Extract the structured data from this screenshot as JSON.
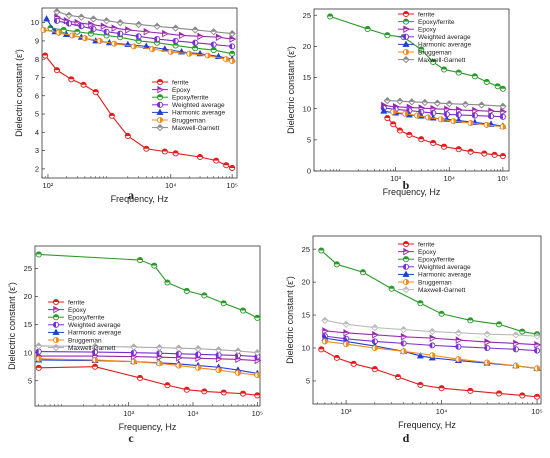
{
  "figure": {
    "panel_letters": [
      "a",
      "b",
      "c",
      "d"
    ]
  },
  "chart_data": [
    {
      "panel": "a",
      "type": "line",
      "xlabel": "Frequency, Hz",
      "ylabel": "Dielectric constant (ε')",
      "xscale": "log",
      "xlim": [
        80,
        120000
      ],
      "ylim": [
        1.5,
        10.8
      ],
      "x_ticks": [
        {
          "value": 100,
          "label": "10²"
        },
        {
          "value": 10000,
          "label": "10⁴"
        },
        {
          "value": 100000,
          "label": "10⁵"
        }
      ],
      "y_ticks": [
        {
          "value": 2,
          "label": "2"
        },
        {
          "value": 3,
          "label": "3"
        },
        {
          "value": 4,
          "label": "4"
        },
        {
          "value": 5,
          "label": "5"
        },
        {
          "value": 6,
          "label": "6"
        },
        {
          "value": 7,
          "label": "7"
        },
        {
          "value": 8,
          "label": "8"
        },
        {
          "value": 9,
          "label": "9"
        },
        {
          "value": 10,
          "label": "10"
        }
      ],
      "legend_position": "center-right",
      "series": [
        {
          "name": "ferrite",
          "color": "#e41a1c",
          "marker": "circle-half",
          "x": [
            90,
            140,
            240,
            380,
            600,
            1100,
            2000,
            4000,
            8000,
            12000,
            30000,
            55000,
            80000,
            100000
          ],
          "y": [
            8.2,
            7.4,
            6.9,
            6.6,
            6.2,
            4.9,
            3.8,
            3.1,
            2.95,
            2.85,
            2.65,
            2.45,
            2.2,
            2.05
          ]
        },
        {
          "name": "Epoxy",
          "color": "#9b27b0",
          "marker": "triangle-right",
          "x": [
            140,
            200,
            300,
            500,
            800,
            1200,
            2000,
            4000,
            8000,
            15000,
            30000,
            60000,
            100000
          ],
          "y": [
            10.3,
            10.1,
            10.0,
            9.9,
            9.8,
            9.7,
            9.6,
            9.5,
            9.4,
            9.3,
            9.25,
            9.2,
            9.1
          ]
        },
        {
          "name": "Epoxy/ferrite",
          "color": "#2a9a2a",
          "marker": "circle-half",
          "x": [
            110,
            180,
            300,
            500,
            900,
            1500,
            3000,
            6000,
            12000,
            25000,
            50000,
            100000
          ],
          "y": [
            9.7,
            9.6,
            9.5,
            9.4,
            9.3,
            9.2,
            9.0,
            8.9,
            8.75,
            8.6,
            8.5,
            8.3
          ]
        },
        {
          "name": "Weighted average",
          "color": "#7b2fd0",
          "marker": "circle-left",
          "x": [
            140,
            220,
            350,
            550,
            900,
            1500,
            3000,
            6000,
            12000,
            25000,
            50000,
            100000
          ],
          "y": [
            10.1,
            9.95,
            9.8,
            9.65,
            9.5,
            9.4,
            9.25,
            9.1,
            9.0,
            8.9,
            8.8,
            8.7
          ]
        },
        {
          "name": "Harmonic average",
          "color": "#1f3fd6",
          "marker": "triangle-up",
          "x": [
            95,
            130,
            200,
            350,
            600,
            1000,
            2000,
            4000,
            8000,
            15000,
            30000,
            60000,
            100000
          ],
          "y": [
            10.2,
            9.5,
            9.35,
            9.2,
            9.0,
            8.9,
            8.8,
            8.7,
            8.55,
            8.4,
            8.3,
            8.15,
            8.0
          ]
        },
        {
          "name": "Bruggeman",
          "color": "#f08a18",
          "marker": "circle-right",
          "x": [
            85,
            150,
            250,
            400,
            700,
            1200,
            2500,
            5000,
            10000,
            20000,
            40000,
            80000,
            100000
          ],
          "y": [
            9.6,
            9.45,
            9.3,
            9.15,
            9.0,
            8.85,
            8.7,
            8.55,
            8.4,
            8.3,
            8.2,
            8.0,
            7.9
          ]
        },
        {
          "name": "Maxwell-Garnett",
          "color": "#888888",
          "marker": "diamond",
          "x": [
            140,
            220,
            350,
            550,
            900,
            1500,
            3000,
            6000,
            12000,
            25000,
            50000,
            100000
          ],
          "y": [
            10.6,
            10.4,
            10.3,
            10.2,
            10.1,
            10.0,
            9.9,
            9.8,
            9.7,
            9.6,
            9.5,
            9.4
          ]
        }
      ]
    },
    {
      "panel": "b",
      "type": "line",
      "xlabel": "Frequency, Hz",
      "ylabel": "Dielectric constant (ε')",
      "xscale": "log",
      "xlim": [
        30,
        130000
      ],
      "ylim": [
        0,
        26
      ],
      "x_ticks": [
        {
          "value": 1000,
          "label": "10³"
        },
        {
          "value": 10000,
          "label": "10⁴"
        },
        {
          "value": 100000,
          "label": "10⁵"
        }
      ],
      "y_ticks": [
        {
          "value": 0,
          "label": "0"
        },
        {
          "value": 5,
          "label": "5"
        },
        {
          "value": 10,
          "label": "10"
        },
        {
          "value": 15,
          "label": "15"
        },
        {
          "value": 20,
          "label": "20"
        },
        {
          "value": 25,
          "label": "25"
        }
      ],
      "legend_position": "top-right",
      "series": [
        {
          "name": "ferrite",
          "color": "#e41a1c",
          "marker": "circle-half",
          "x": [
            700,
            900,
            1200,
            1800,
            3000,
            5000,
            8000,
            15000,
            25000,
            45000,
            70000,
            100000
          ],
          "y": [
            8.5,
            7.5,
            6.5,
            5.8,
            5.1,
            4.5,
            3.9,
            3.5,
            3.1,
            2.8,
            2.6,
            2.4
          ]
        },
        {
          "name": "Epoxy/ferrite",
          "color": "#2a9a2a",
          "marker": "circle-half",
          "x": [
            60,
            300,
            700,
            1400,
            3000,
            5000,
            8000,
            15000,
            30000,
            50000,
            80000,
            100000
          ],
          "y": [
            24.8,
            22.8,
            21.8,
            21.5,
            19.5,
            17.5,
            16.3,
            15.8,
            15.2,
            14.3,
            13.6,
            13.2
          ]
        },
        {
          "name": "Epoxy",
          "color": "#9b27b0",
          "marker": "triangle-right",
          "x": [
            600,
            1000,
            1800,
            3000,
            5000,
            9000,
            15000,
            30000,
            60000,
            100000
          ],
          "y": [
            10.5,
            10.3,
            10.2,
            10.1,
            10.0,
            9.9,
            9.8,
            9.7,
            9.6,
            9.5
          ]
        },
        {
          "name": "Weighted average",
          "color": "#7b2fd0",
          "marker": "circle-left",
          "x": [
            600,
            1000,
            1800,
            3000,
            5000,
            9000,
            15000,
            30000,
            60000,
            100000
          ],
          "y": [
            10.1,
            9.9,
            9.7,
            9.5,
            9.3,
            9.1,
            9.0,
            8.9,
            8.8,
            8.7
          ]
        },
        {
          "name": "Harmonic average",
          "color": "#1f3fd6",
          "marker": "triangle-up",
          "x": [
            600,
            1000,
            1800,
            3000,
            5000,
            9000,
            15000,
            30000,
            60000,
            100000
          ],
          "y": [
            9.6,
            9.3,
            9.0,
            8.8,
            8.5,
            8.3,
            8.1,
            7.8,
            7.5,
            7.2
          ]
        },
        {
          "name": "Bruggeman",
          "color": "#f08a18",
          "marker": "circle-right",
          "x": [
            900,
            1500,
            2500,
            4000,
            7000,
            12000,
            25000,
            50000,
            100000
          ],
          "y": [
            9.5,
            9.2,
            8.9,
            8.6,
            8.3,
            8.0,
            7.7,
            7.4,
            7.1
          ]
        },
        {
          "name": "Maxwell-Garnett",
          "color": "#888888",
          "marker": "diamond",
          "x": [
            700,
            1200,
            2000,
            3500,
            6000,
            10000,
            20000,
            40000,
            100000
          ],
          "y": [
            11.3,
            11.2,
            11.1,
            11.0,
            10.9,
            10.8,
            10.7,
            10.6,
            10.4
          ]
        }
      ]
    },
    {
      "panel": "c",
      "type": "line",
      "xlabel": "Frequency, Hz",
      "ylabel": "Dielectric constant (ε')",
      "xscale": "log",
      "xlim": [
        35,
        110000
      ],
      "ylim": [
        0.5,
        29
      ],
      "x_ticks": [
        {
          "value": 1000,
          "label": "10³"
        },
        {
          "value": 10000,
          "label": "10⁴"
        },
        {
          "value": 100000,
          "label": "10⁵"
        }
      ],
      "y_ticks": [
        {
          "value": 5,
          "label": "5"
        },
        {
          "value": 10,
          "label": "10"
        },
        {
          "value": 15,
          "label": "15"
        },
        {
          "value": 20,
          "label": "20"
        },
        {
          "value": 25,
          "label": "25"
        }
      ],
      "legend_position": "center-left",
      "series": [
        {
          "name": "ferrite",
          "color": "#e41a1c",
          "marker": "circle-half",
          "x": [
            40,
            300,
            1500,
            4000,
            8000,
            15000,
            30000,
            60000,
            100000
          ],
          "y": [
            7.3,
            7.5,
            5.5,
            4.2,
            3.4,
            3.1,
            2.9,
            2.7,
            2.4
          ]
        },
        {
          "name": "Epoxy",
          "color": "#9b27b0",
          "marker": "triangle-right",
          "x": [
            40,
            300,
            1200,
            3000,
            6000,
            12000,
            25000,
            50000,
            100000
          ],
          "y": [
            9.4,
            9.4,
            9.3,
            9.2,
            9.1,
            9.0,
            8.9,
            8.8,
            8.6
          ]
        },
        {
          "name": "Epoxy/ferrite",
          "color": "#2a9a2a",
          "marker": "circle-half",
          "x": [
            40,
            1500,
            2500,
            4000,
            8000,
            15000,
            30000,
            60000,
            100000
          ],
          "y": [
            27.5,
            26.5,
            25.5,
            22.5,
            21.0,
            20.2,
            18.8,
            17.5,
            16.2
          ]
        },
        {
          "name": "Weighted average",
          "color": "#7b2fd0",
          "marker": "circle-left",
          "x": [
            40,
            300,
            1200,
            3000,
            6000,
            12000,
            25000,
            50000,
            100000
          ],
          "y": [
            10.2,
            10.1,
            10.0,
            9.9,
            9.8,
            9.7,
            9.6,
            9.5,
            9.3
          ]
        },
        {
          "name": "Harmonic average",
          "color": "#1f3fd6",
          "marker": "triangle-up",
          "x": [
            40,
            300,
            1200,
            3000,
            6000,
            12000,
            25000,
            50000,
            100000
          ],
          "y": [
            8.7,
            8.6,
            8.4,
            8.2,
            8.0,
            7.7,
            7.4,
            6.9,
            6.3
          ]
        },
        {
          "name": "Bruggeman",
          "color": "#f08a18",
          "marker": "circle-right",
          "x": [
            40,
            300,
            1200,
            3000,
            6000,
            12000,
            25000,
            50000,
            100000
          ],
          "y": [
            8.9,
            8.7,
            8.4,
            8.1,
            7.7,
            7.3,
            6.9,
            6.4,
            6.0
          ]
        },
        {
          "name": "Maxwell-Garnett",
          "color": "#aaaaaa",
          "marker": "diamond",
          "x": [
            40,
            300,
            1200,
            3000,
            6000,
            12000,
            25000,
            50000,
            100000
          ],
          "y": [
            11.2,
            11.1,
            11.0,
            10.9,
            10.8,
            10.7,
            10.5,
            10.3,
            10.0
          ]
        }
      ]
    },
    {
      "panel": "d",
      "type": "line",
      "xlabel": "Frequency, Hz",
      "ylabel": "Dielectric constant (ε')",
      "xscale": "log",
      "xlim": [
        450,
        110000
      ],
      "ylim": [
        1.5,
        27
      ],
      "x_ticks": [
        {
          "value": 1000,
          "label": "10³"
        },
        {
          "value": 10000,
          "label": "10⁴"
        },
        {
          "value": 100000,
          "label": "10⁵"
        }
      ],
      "y_ticks": [
        {
          "value": 5,
          "label": "5"
        },
        {
          "value": 10,
          "label": "10"
        },
        {
          "value": 15,
          "label": "15"
        },
        {
          "value": 20,
          "label": "20"
        },
        {
          "value": 25,
          "label": "25"
        }
      ],
      "legend_position": "top-right",
      "series": [
        {
          "name": "ferrite",
          "color": "#e41a1c",
          "marker": "circle-half",
          "x": [
            550,
            800,
            1200,
            2000,
            3500,
            6000,
            10000,
            20000,
            40000,
            70000,
            100000
          ],
          "y": [
            9.8,
            8.5,
            7.6,
            6.8,
            5.6,
            4.4,
            3.9,
            3.5,
            3.1,
            2.8,
            2.6
          ]
        },
        {
          "name": "Epoxy",
          "color": "#9b27b0",
          "marker": "triangle-right",
          "x": [
            600,
            1000,
            2000,
            4000,
            8000,
            15000,
            30000,
            60000,
            100000
          ],
          "y": [
            12.6,
            12.3,
            12.0,
            11.7,
            11.5,
            11.2,
            10.9,
            10.7,
            10.5
          ]
        },
        {
          "name": "Epoxy/ferrite",
          "color": "#2a9a2a",
          "marker": "circle-half",
          "x": [
            550,
            800,
            1500,
            3000,
            6000,
            10000,
            20000,
            40000,
            70000,
            100000
          ],
          "y": [
            24.8,
            22.7,
            21.5,
            19.0,
            16.8,
            15.2,
            14.2,
            13.6,
            12.5,
            12.1
          ]
        },
        {
          "name": "Weighted average",
          "color": "#7b2fd0",
          "marker": "circle-left",
          "x": [
            600,
            1000,
            2000,
            4000,
            8000,
            15000,
            30000,
            60000,
            100000
          ],
          "y": [
            11.8,
            11.4,
            11.0,
            10.7,
            10.4,
            10.2,
            10.0,
            9.8,
            9.6
          ]
        },
        {
          "name": "Harmonic average",
          "color": "#1f3fd6",
          "marker": "triangle-up",
          "x": [
            600,
            1000,
            2000,
            4000,
            6000,
            8000,
            15000,
            30000,
            60000,
            100000
          ],
          "y": [
            11.5,
            11.0,
            10.3,
            9.5,
            8.8,
            8.5,
            8.1,
            7.7,
            7.3,
            6.9
          ]
        },
        {
          "name": "Bruggeman",
          "color": "#f08a18",
          "marker": "circle-right",
          "x": [
            600,
            1000,
            2000,
            4000,
            8000,
            15000,
            30000,
            60000,
            100000
          ],
          "y": [
            11.0,
            10.6,
            10.0,
            9.5,
            8.9,
            8.3,
            7.8,
            7.3,
            6.9
          ]
        },
        {
          "name": "Maxwell-Garnett",
          "color": "#bbbbbb",
          "marker": "diamond",
          "x": [
            600,
            1000,
            2000,
            4000,
            8000,
            15000,
            30000,
            60000,
            100000
          ],
          "y": [
            14.2,
            13.6,
            13.1,
            12.8,
            12.5,
            12.3,
            12.1,
            12.0,
            11.8
          ]
        }
      ]
    }
  ]
}
